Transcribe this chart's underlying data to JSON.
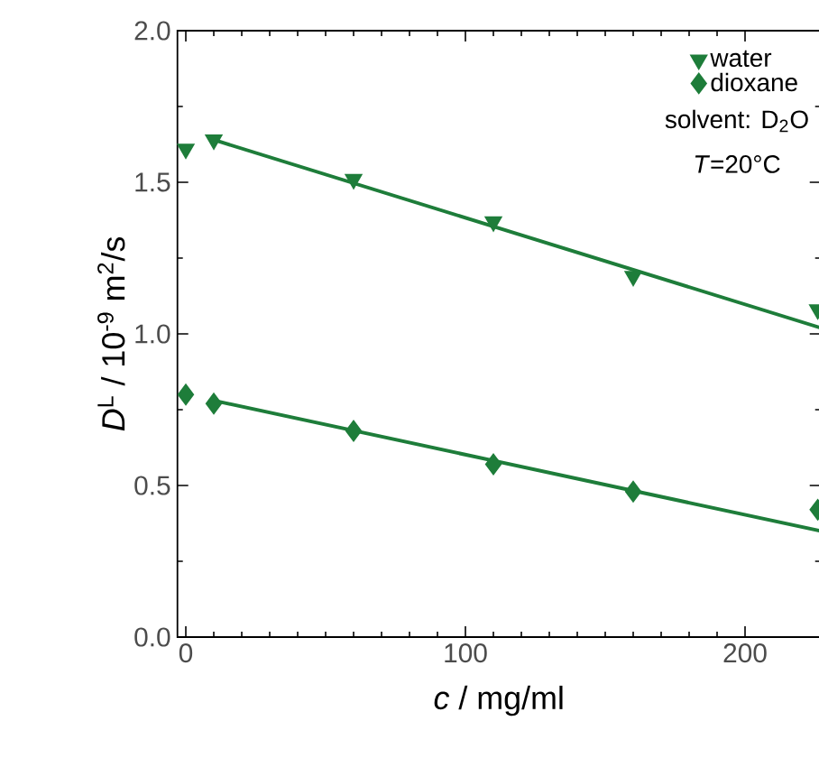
{
  "chart_data": {
    "type": "scatter",
    "xlabel": "*c* / mg/ml",
    "ylabel": "*D*$^{L}$ / 10$^{-9}$ m$^{2}$/s",
    "annotations": [
      "solvent: D$_{2}$O",
      "*T*=20°C"
    ],
    "series": [
      {
        "name": "water",
        "marker": "triangle",
        "color": "#1e7d3a",
        "x": [
          0,
          10,
          60,
          110,
          160,
          226
        ],
        "values": [
          1.61,
          1.64,
          1.51,
          1.37,
          1.19,
          1.08
        ]
      },
      {
        "name": "dioxane",
        "marker": "diamond",
        "color": "#1e7d3a",
        "x": [
          0,
          10,
          60,
          110,
          160,
          226
        ],
        "values": [
          0.8,
          0.77,
          0.68,
          0.57,
          0.48,
          0.42
        ]
      },
      {
        "type": "line",
        "marker": "none",
        "color": "#1e7d3a",
        "x": [
          10,
          227
        ],
        "values": [
          1.64,
          1.02
        ]
      },
      {
        "type": "line",
        "marker": "none",
        "color": "#1e7d3a",
        "x": [
          10,
          227
        ],
        "values": [
          0.78,
          0.35
        ]
      }
    ],
    "xlim": [
      -3,
      227
    ],
    "xticks": [
      0,
      100,
      200
    ],
    "ylim": [
      0,
      2
    ],
    "yticks": [
      {
        "value": 0,
        "label": "0.0"
      },
      0.5,
      {
        "value": 1,
        "label": "1.0"
      },
      1.5,
      {
        "value": 2,
        "label": "2.0"
      }
    ],
    "grid": false,
    "legend": "top right"
  }
}
